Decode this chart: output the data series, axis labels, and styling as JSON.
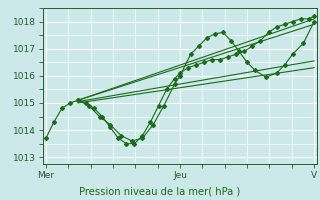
{
  "bg_color": "#cce8e8",
  "plot_bg_color": "#cce8e8",
  "grid_color": "#ffffff",
  "line_color": "#1a6b1a",
  "marker_color": "#1a6b1a",
  "xlabel": "Pression niveau de la mer( hPa )",
  "xlabel_color": "#1a6b1a",
  "tick_color": "#2a5a2a",
  "ylim": [
    1012.75,
    1018.5
  ],
  "yticks": [
    1013,
    1014,
    1015,
    1016,
    1017,
    1018
  ],
  "x_tick_pos": [
    0.0,
    0.5,
    1.0
  ],
  "x_tick_labels": [
    "Mer",
    "Jeu",
    "V"
  ],
  "series1": [
    [
      0.0,
      1013.7
    ],
    [
      0.03,
      1014.3
    ],
    [
      0.06,
      1014.8
    ],
    [
      0.09,
      1015.0
    ],
    [
      0.12,
      1015.1
    ],
    [
      0.15,
      1015.0
    ],
    [
      0.18,
      1014.8
    ],
    [
      0.21,
      1014.5
    ],
    [
      0.24,
      1014.1
    ],
    [
      0.27,
      1013.7
    ],
    [
      0.3,
      1013.5
    ],
    [
      0.33,
      1013.5
    ],
    [
      0.36,
      1013.8
    ],
    [
      0.39,
      1014.3
    ],
    [
      0.42,
      1014.9
    ],
    [
      0.45,
      1015.5
    ],
    [
      0.48,
      1015.9
    ],
    [
      0.5,
      1016.1
    ],
    [
      0.53,
      1016.3
    ],
    [
      0.56,
      1016.4
    ],
    [
      0.59,
      1016.5
    ],
    [
      0.62,
      1016.6
    ],
    [
      0.65,
      1016.6
    ],
    [
      0.68,
      1016.7
    ],
    [
      0.71,
      1016.8
    ],
    [
      0.74,
      1016.9
    ],
    [
      0.77,
      1017.1
    ],
    [
      0.8,
      1017.3
    ],
    [
      0.83,
      1017.6
    ],
    [
      0.86,
      1017.8
    ],
    [
      0.89,
      1017.9
    ],
    [
      0.92,
      1018.0
    ],
    [
      0.95,
      1018.1
    ],
    [
      0.98,
      1018.1
    ],
    [
      1.0,
      1018.2
    ]
  ],
  "series2": [
    [
      0.12,
      1015.1
    ],
    [
      0.16,
      1014.9
    ],
    [
      0.2,
      1014.5
    ],
    [
      0.24,
      1014.2
    ],
    [
      0.28,
      1013.8
    ],
    [
      0.32,
      1013.6
    ],
    [
      0.36,
      1013.7
    ],
    [
      0.4,
      1014.2
    ],
    [
      0.44,
      1014.9
    ],
    [
      0.48,
      1015.7
    ],
    [
      0.5,
      1016.0
    ],
    [
      0.54,
      1016.8
    ],
    [
      0.57,
      1017.1
    ],
    [
      0.6,
      1017.4
    ],
    [
      0.63,
      1017.55
    ],
    [
      0.66,
      1017.6
    ],
    [
      0.69,
      1017.3
    ],
    [
      0.72,
      1016.9
    ],
    [
      0.75,
      1016.5
    ],
    [
      0.78,
      1016.2
    ],
    [
      0.82,
      1015.95
    ],
    [
      0.86,
      1016.1
    ],
    [
      0.89,
      1016.4
    ],
    [
      0.92,
      1016.8
    ],
    [
      0.96,
      1017.2
    ],
    [
      1.0,
      1018.0
    ]
  ],
  "trend_lines": [
    [
      [
        0.12,
        1015.1
      ],
      [
        1.0,
        1018.1
      ]
    ],
    [
      [
        0.12,
        1015.1
      ],
      [
        1.0,
        1017.9
      ]
    ],
    [
      [
        0.12,
        1015.05
      ],
      [
        1.0,
        1016.55
      ]
    ],
    [
      [
        0.12,
        1015.0
      ],
      [
        1.0,
        1016.3
      ]
    ]
  ],
  "figsize": [
    3.2,
    2.0
  ],
  "dpi": 100
}
